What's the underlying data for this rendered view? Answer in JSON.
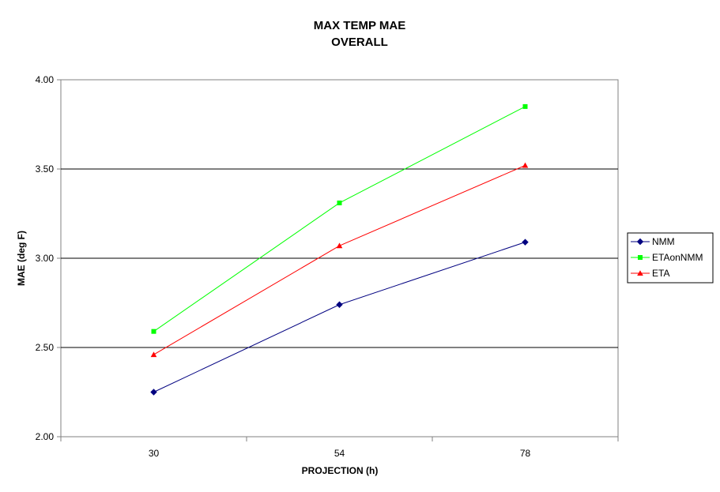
{
  "chart_data": {
    "type": "line",
    "title_lines": [
      "MAX TEMP MAE",
      "OVERALL"
    ],
    "xlabel": "PROJECTION (h)",
    "ylabel": "MAE (deg F)",
    "categories": [
      "30",
      "54",
      "78"
    ],
    "ylim": [
      2.0,
      4.0
    ],
    "yticks": [
      "2.00",
      "2.50",
      "3.00",
      "3.50",
      "4.00"
    ],
    "ytick_values": [
      2.0,
      2.5,
      3.0,
      3.5,
      4.0
    ],
    "grid": "horizontal major",
    "legend_position": "right",
    "series": [
      {
        "name": "NMM",
        "color": "#000080",
        "marker": "diamond",
        "values": [
          2.25,
          2.74,
          3.09
        ]
      },
      {
        "name": "ETAonNMM",
        "color": "#00FF00",
        "marker": "square",
        "values": [
          2.59,
          3.31,
          3.85
        ]
      },
      {
        "name": "ETA",
        "color": "#FF0000",
        "marker": "triangle",
        "values": [
          2.46,
          3.07,
          3.52
        ]
      }
    ]
  }
}
